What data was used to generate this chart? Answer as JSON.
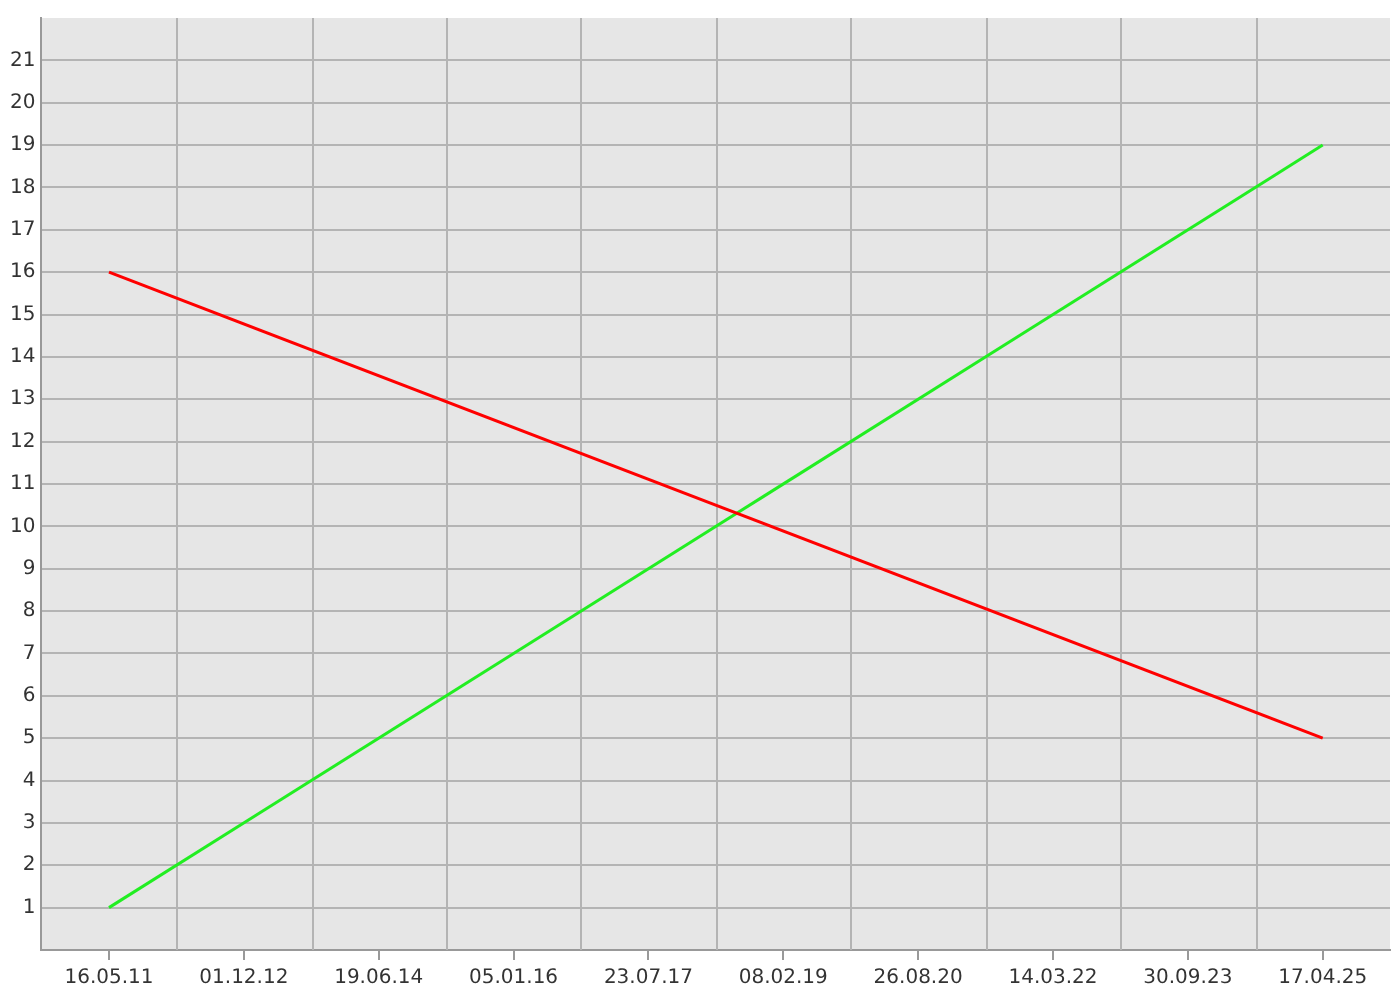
{
  "chart_data": {
    "type": "line",
    "x": [
      "2011-05-16",
      "2025-04-17"
    ],
    "series": [
      {
        "color": "#ff0000",
        "values": [
          16,
          5
        ]
      },
      {
        "color": "#22ee22",
        "values": [
          1,
          19
        ]
      }
    ],
    "xlim": [
      "2010-08-06",
      "2026-01-24"
    ],
    "xticks": [
      {
        "value": "2011-05-16",
        "label": "16.05.11"
      },
      {
        "value": "2012-12-01",
        "label": "01.12.12"
      },
      {
        "value": "2014-06-19",
        "label": "19.06.14"
      },
      {
        "value": "2016-01-05",
        "label": "05.01.16"
      },
      {
        "value": "2017-07-23",
        "label": "23.07.17"
      },
      {
        "value": "2019-02-08",
        "label": "08.02.19"
      },
      {
        "value": "2020-08-26",
        "label": "26.08.20"
      },
      {
        "value": "2022-03-14",
        "label": "14.03.22"
      },
      {
        "value": "2023-09-30",
        "label": "30.09.23"
      },
      {
        "value": "2025-04-17",
        "label": "17.04.25"
      }
    ],
    "ylim": [
      0,
      22
    ],
    "yticks": [
      1,
      2,
      3,
      4,
      5,
      6,
      7,
      8,
      9,
      10,
      11,
      12,
      13,
      14,
      15,
      16,
      17,
      18,
      19,
      20,
      21
    ],
    "grid": true,
    "legend": false,
    "marker": "none",
    "line_style": "solid"
  }
}
